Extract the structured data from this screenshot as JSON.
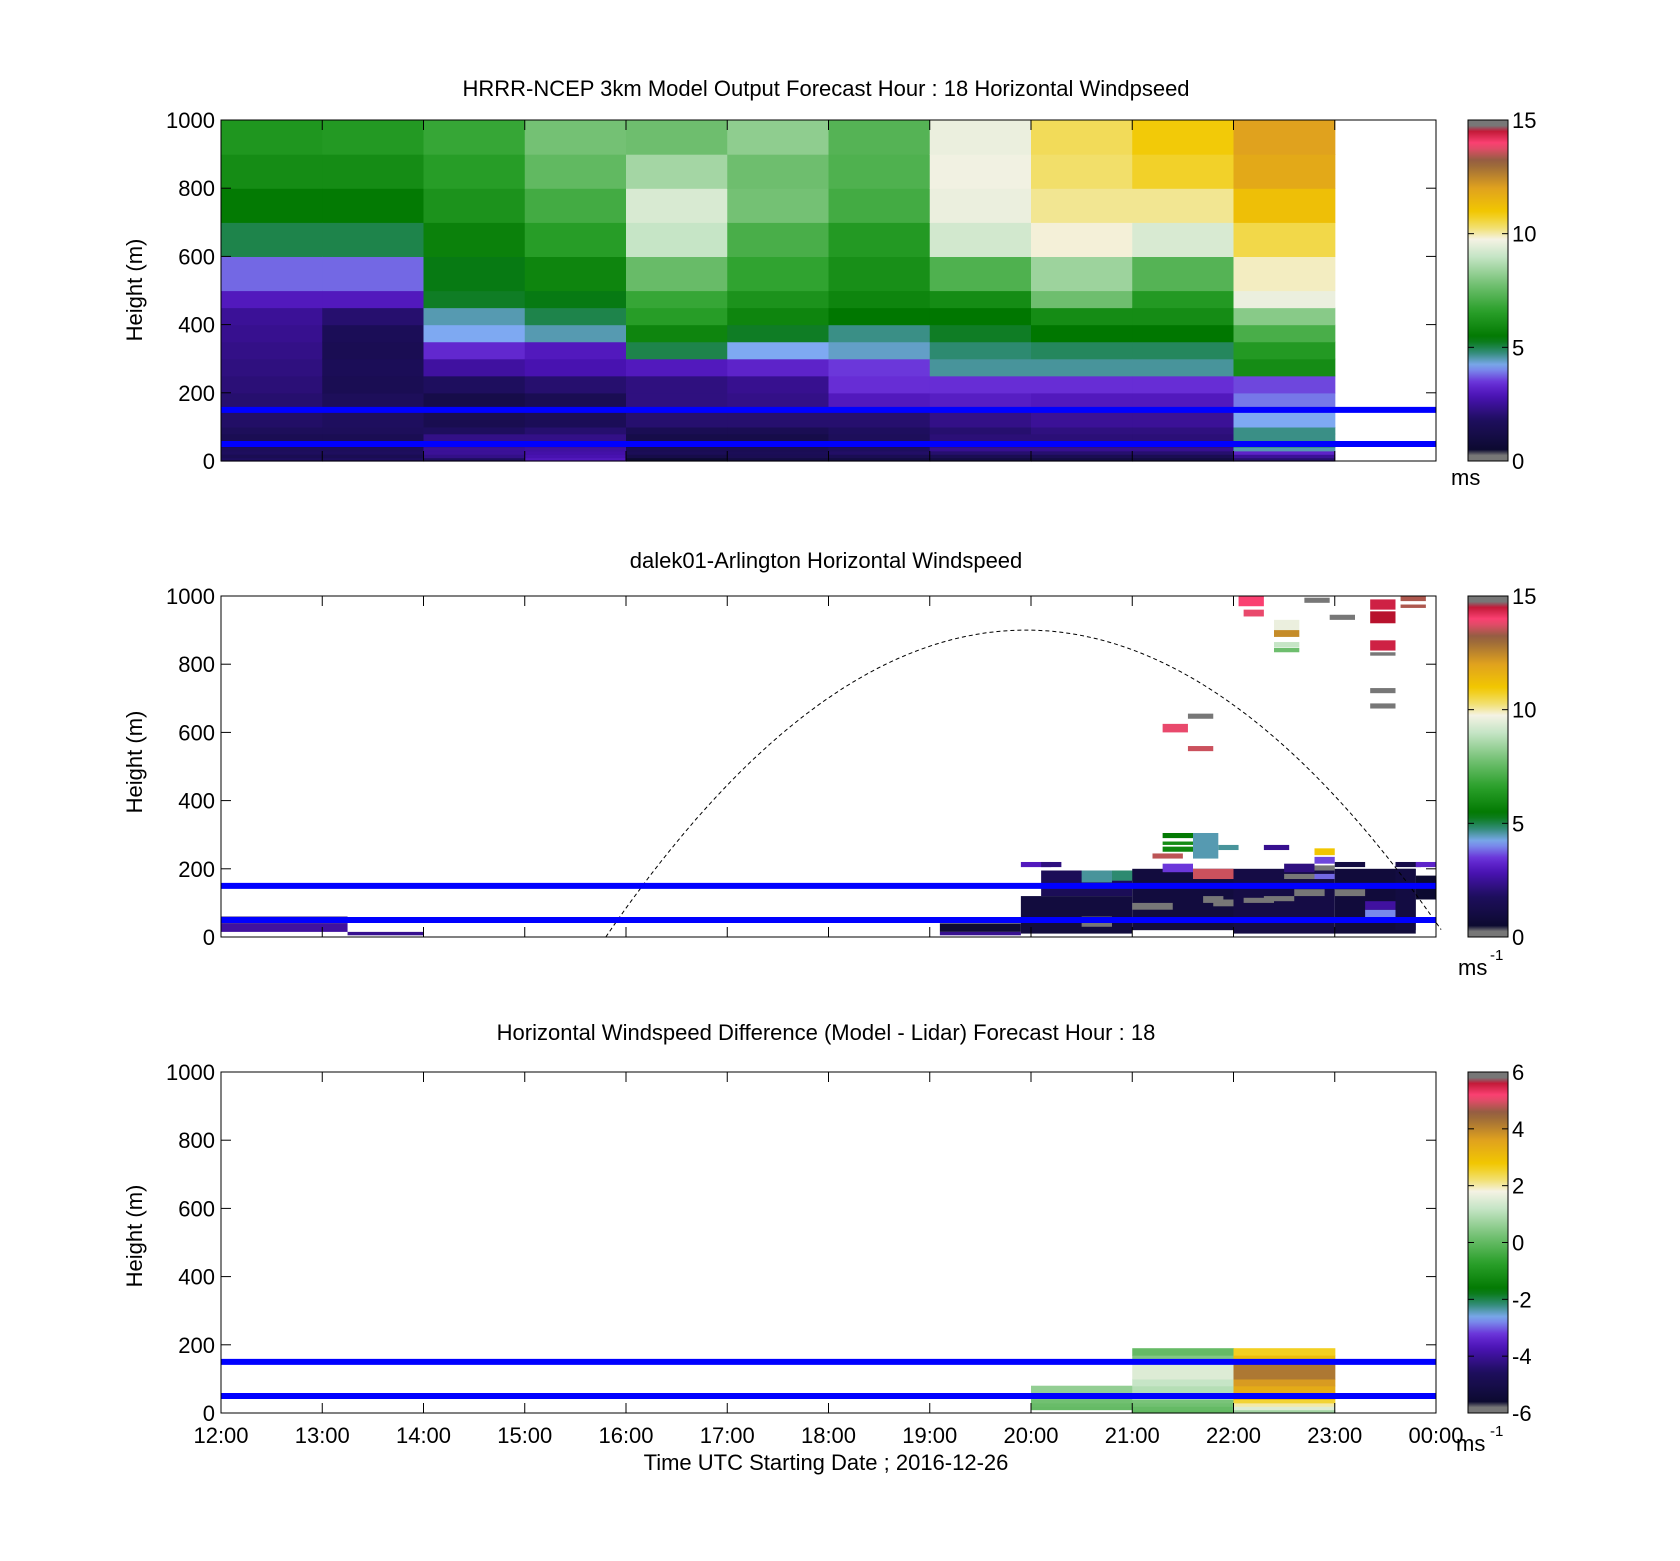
{
  "x_axis": {
    "label": "Time UTC  Starting Date ; 2016-12-26",
    "ticks": [
      "12:00",
      "13:00",
      "14:00",
      "15:00",
      "16:00",
      "17:00",
      "18:00",
      "19:00",
      "20:00",
      "21:00",
      "22:00",
      "23:00",
      "00:00"
    ],
    "range_hours": [
      12,
      24
    ]
  },
  "reference_lines_m": [
    150,
    50
  ],
  "reference_line_color": "#0000ff",
  "colormaps": {
    "speed": [
      [
        0.0,
        "#777777"
      ],
      [
        0.02,
        "#777777"
      ],
      [
        0.021,
        "#0a0a2a"
      ],
      [
        0.12,
        "#1e0e5e"
      ],
      [
        0.19,
        "#4a12b4"
      ],
      [
        0.23,
        "#6a2fd8"
      ],
      [
        0.28,
        "#7ea9f2"
      ],
      [
        0.32,
        "#2d8a70"
      ],
      [
        0.36,
        "#007700"
      ],
      [
        0.44,
        "#2aa02a"
      ],
      [
        0.52,
        "#74c174"
      ],
      [
        0.6,
        "#c6e5c6"
      ],
      [
        0.65,
        "#f4f2e4"
      ],
      [
        0.68,
        "#f2e27a"
      ],
      [
        0.73,
        "#f2c800"
      ],
      [
        0.8,
        "#e0a21e"
      ],
      [
        0.88,
        "#8f5f3f"
      ],
      [
        0.93,
        "#ff4477"
      ],
      [
        0.975,
        "#b5102a"
      ],
      [
        0.976,
        "#777777"
      ],
      [
        1.0,
        "#777777"
      ]
    ]
  },
  "panels": [
    {
      "title": "HRRR-NCEP 3km Model Output   Forecast Hour : 18 Horizontal Windpseed",
      "ylabel": "Height (m)",
      "yticks": [
        "0",
        "200",
        "400",
        "600",
        "800",
        "1000"
      ],
      "colorbar": {
        "min": 0,
        "max": 15,
        "ticks": [
          "0",
          "5",
          "10",
          "15"
        ],
        "unit": "ms",
        "unit_sup": ""
      },
      "show_xticklabels": false,
      "heatmap": {
        "start_hour": 12,
        "step_hour": 1,
        "bins": [
          [
            0,
            10
          ],
          [
            10,
            20
          ],
          [
            20,
            30
          ],
          [
            30,
            40
          ],
          [
            40,
            60
          ],
          [
            60,
            80
          ],
          [
            80,
            100
          ],
          [
            100,
            150
          ],
          [
            150,
            200
          ],
          [
            200,
            250
          ],
          [
            250,
            300
          ],
          [
            300,
            350
          ],
          [
            350,
            400
          ],
          [
            400,
            450
          ],
          [
            450,
            500
          ],
          [
            500,
            600
          ],
          [
            600,
            700
          ],
          [
            700,
            800
          ],
          [
            800,
            900
          ],
          [
            900,
            1000
          ]
        ],
        "columns": [
          [
            1.8,
            1.5,
            1.8,
            1.7,
            1.6,
            1.5,
            1.7,
            1.9,
            2.0,
            2.1,
            2.2,
            2.3,
            2.4,
            2.5,
            3.0,
            3.8,
            5.0,
            5.5,
            6.0,
            6.3
          ],
          [
            1.8,
            1.5,
            1.8,
            1.7,
            1.6,
            1.5,
            1.7,
            1.8,
            1.7,
            1.5,
            1.6,
            1.5,
            1.6,
            2.0,
            3.0,
            3.8,
            5.0,
            5.5,
            6.0,
            6.4
          ],
          [
            1.8,
            2.3,
            2.5,
            2.5,
            2.4,
            2.3,
            1.8,
            1.4,
            1.2,
            1.8,
            2.6,
            3.3,
            4.2,
            4.5,
            5.2,
            5.3,
            5.7,
            6.2,
            6.5,
            6.8
          ],
          [
            3.0,
            2.8,
            2.7,
            2.6,
            2.5,
            2.3,
            2.0,
            1.6,
            1.5,
            2.0,
            2.8,
            3.0,
            4.5,
            5.0,
            5.3,
            5.8,
            6.5,
            7.0,
            7.5,
            7.8
          ],
          [
            0.5,
            1.2,
            1.6,
            1.5,
            1.3,
            1.2,
            1.5,
            2.0,
            2.2,
            2.2,
            3.0,
            5.0,
            5.8,
            6.5,
            6.8,
            7.6,
            9.0,
            9.3,
            8.5,
            7.7
          ],
          [
            1.0,
            1.5,
            1.6,
            1.5,
            1.3,
            1.2,
            1.5,
            2.0,
            2.3,
            2.4,
            3.2,
            4.2,
            5.2,
            5.8,
            6.2,
            6.7,
            7.1,
            7.8,
            7.7,
            8.2
          ],
          [
            1.0,
            1.5,
            1.9,
            1.8,
            1.6,
            1.7,
            1.8,
            2.0,
            3.0,
            3.4,
            3.5,
            4.4,
            4.7,
            5.4,
            5.8,
            6.1,
            6.4,
            7.0,
            7.2,
            7.3
          ],
          [
            1.0,
            1.5,
            2.0,
            2.4,
            2.2,
            2.1,
            2.0,
            2.3,
            3.1,
            3.4,
            4.6,
            4.8,
            5.2,
            5.4,
            6.0,
            7.2,
            9.2,
            9.6,
            9.7,
            9.6
          ],
          [
            1.0,
            1.5,
            2.0,
            2.4,
            2.2,
            2.1,
            2.2,
            2.5,
            3.0,
            3.4,
            4.6,
            4.9,
            5.4,
            6.0,
            7.7,
            8.4,
            9.8,
            10.1,
            10.3,
            10.4
          ],
          [
            1.0,
            1.5,
            2.0,
            2.4,
            2.2,
            2.1,
            2.2,
            2.5,
            3.0,
            3.4,
            4.6,
            4.9,
            5.4,
            6.0,
            6.4,
            7.3,
            9.3,
            10.1,
            10.7,
            10.9
          ],
          [
            2.0,
            2.5,
            3.2,
            4.5,
            4.7,
            4.7,
            4.7,
            4.2,
            3.9,
            3.6,
            6.0,
            6.4,
            7.1,
            8.1,
            9.6,
            9.9,
            10.5,
            11.2,
            11.8,
            12.0
          ]
        ]
      },
      "scatter": [],
      "arc": null
    },
    {
      "title": "dalek01-Arlington  Horizontal Windspeed",
      "ylabel": "Height (m)",
      "yticks": [
        "0",
        "200",
        "400",
        "600",
        "800",
        "1000"
      ],
      "colorbar": {
        "min": 0,
        "max": 15,
        "ticks": [
          "0",
          "5",
          "10",
          "15"
        ],
        "unit": "ms",
        "unit_sup": "-1"
      },
      "show_xticklabels": false,
      "heatmap": null,
      "scatter": [
        {
          "t0": 12.0,
          "t1": 13.25,
          "h0": 40,
          "h1": 60,
          "v": 2.0
        },
        {
          "t0": 12.0,
          "t1": 13.25,
          "h0": 15,
          "h1": 40,
          "v": 2.6
        },
        {
          "t0": 13.25,
          "t1": 14.0,
          "h0": 5,
          "h1": 15,
          "v": 2.4
        },
        {
          "t0": 19.1,
          "t1": 19.9,
          "h0": 15,
          "h1": 40,
          "v": 0.6
        },
        {
          "t0": 19.1,
          "t1": 19.9,
          "h0": 5,
          "h1": 15,
          "v": 2.4
        },
        {
          "t0": 19.9,
          "t1": 21.0,
          "h0": 10,
          "h1": 120,
          "v": 0.9
        },
        {
          "t0": 19.9,
          "t1": 20.2,
          "h0": 205,
          "h1": 220,
          "v": 3.0
        },
        {
          "t0": 20.1,
          "t1": 20.3,
          "h0": 205,
          "h1": 220,
          "v": 2.2
        },
        {
          "t0": 20.1,
          "t1": 21.0,
          "h0": 120,
          "h1": 195,
          "v": 1.6
        },
        {
          "t0": 20.5,
          "t1": 20.8,
          "h0": 160,
          "h1": 195,
          "v": 4.6
        },
        {
          "t0": 20.8,
          "t1": 21.1,
          "h0": 165,
          "h1": 195,
          "v": 4.8
        },
        {
          "t0": 20.5,
          "t1": 20.8,
          "h0": 30,
          "h1": 60,
          "v": 0.2
        },
        {
          "t0": 21.0,
          "t1": 22.0,
          "h0": 20,
          "h1": 200,
          "v": 0.9
        },
        {
          "t0": 21.0,
          "t1": 21.4,
          "h0": 80,
          "h1": 100,
          "v": 0.2
        },
        {
          "t0": 21.2,
          "t1": 21.5,
          "h0": 230,
          "h1": 245,
          "v": 13.5
        },
        {
          "t0": 21.3,
          "t1": 21.6,
          "h0": 190,
          "h1": 215,
          "v": 3.5
        },
        {
          "t0": 21.3,
          "t1": 21.6,
          "h0": 250,
          "h1": 265,
          "v": 5.8
        },
        {
          "t0": 21.3,
          "t1": 21.6,
          "h0": 290,
          "h1": 305,
          "v": 5.5
        },
        {
          "t0": 21.3,
          "t1": 21.6,
          "h0": 270,
          "h1": 280,
          "v": 6.0
        },
        {
          "t0": 21.6,
          "t1": 21.85,
          "h0": 230,
          "h1": 305,
          "v": 4.5
        },
        {
          "t0": 21.85,
          "t1": 22.05,
          "h0": 255,
          "h1": 270,
          "v": 4.6
        },
        {
          "t0": 21.6,
          "t1": 22.0,
          "h0": 170,
          "h1": 200,
          "v": 13.6
        },
        {
          "t0": 21.8,
          "t1": 22.0,
          "h0": 90,
          "h1": 110,
          "v": 0.2
        },
        {
          "t0": 21.7,
          "t1": 21.9,
          "h0": 100,
          "h1": 120,
          "v": 0.2
        },
        {
          "t0": 22.0,
          "t1": 23.0,
          "h0": 10,
          "h1": 200,
          "v": 1.1
        },
        {
          "t0": 22.1,
          "t1": 22.4,
          "h0": 100,
          "h1": 115,
          "v": 0.2
        },
        {
          "t0": 22.3,
          "t1": 22.6,
          "h0": 105,
          "h1": 120,
          "v": 0.2
        },
        {
          "t0": 22.3,
          "t1": 22.55,
          "h0": 255,
          "h1": 270,
          "v": 2.4
        },
        {
          "t0": 22.5,
          "t1": 22.8,
          "h0": 190,
          "h1": 215,
          "v": 2.2
        },
        {
          "t0": 22.5,
          "t1": 22.8,
          "h0": 170,
          "h1": 185,
          "v": 0.2
        },
        {
          "t0": 22.6,
          "t1": 22.9,
          "h0": 120,
          "h1": 140,
          "v": 0.2
        },
        {
          "t0": 22.8,
          "t1": 23.0,
          "h0": 240,
          "h1": 260,
          "v": 11.0
        },
        {
          "t0": 22.8,
          "t1": 23.0,
          "h0": 215,
          "h1": 235,
          "v": 3.6
        },
        {
          "t0": 22.8,
          "t1": 23.0,
          "h0": 195,
          "h1": 210,
          "v": 0.2
        },
        {
          "t0": 22.8,
          "t1": 23.0,
          "h0": 170,
          "h1": 185,
          "v": 3.8
        },
        {
          "t0": 23.0,
          "t1": 23.8,
          "h0": 10,
          "h1": 200,
          "v": 0.8
        },
        {
          "t0": 23.0,
          "t1": 23.3,
          "h0": 205,
          "h1": 220,
          "v": 1.0
        },
        {
          "t0": 23.0,
          "t1": 23.3,
          "h0": 120,
          "h1": 140,
          "v": 0.2
        },
        {
          "t0": 23.3,
          "t1": 23.6,
          "h0": 55,
          "h1": 80,
          "v": 4.0
        },
        {
          "t0": 23.3,
          "t1": 23.6,
          "h0": 80,
          "h1": 105,
          "v": 2.6
        },
        {
          "t0": 23.6,
          "t1": 23.85,
          "h0": 205,
          "h1": 220,
          "v": 1.2
        },
        {
          "t0": 23.6,
          "t1": 23.8,
          "h0": 20,
          "h1": 200,
          "v": 1.0
        },
        {
          "t0": 23.8,
          "t1": 24.0,
          "h0": 205,
          "h1": 220,
          "v": 3.2
        },
        {
          "t0": 23.8,
          "t1": 24.0,
          "h0": 110,
          "h1": 180,
          "v": 0.5
        },
        {
          "t0": 22.05,
          "t1": 22.3,
          "h0": 970,
          "h1": 1000,
          "v": 14.0
        },
        {
          "t0": 22.1,
          "t1": 22.3,
          "h0": 940,
          "h1": 960,
          "v": 13.8
        },
        {
          "t0": 22.4,
          "t1": 22.65,
          "h0": 900,
          "h1": 930,
          "v": 9.6
        },
        {
          "t0": 22.4,
          "t1": 22.65,
          "h0": 880,
          "h1": 900,
          "v": 12.4
        },
        {
          "t0": 22.4,
          "t1": 22.65,
          "h0": 850,
          "h1": 865,
          "v": 9.0
        },
        {
          "t0": 22.4,
          "t1": 22.65,
          "h0": 835,
          "h1": 848,
          "v": 7.7
        },
        {
          "t0": 22.7,
          "t1": 22.95,
          "h0": 980,
          "h1": 995,
          "v": 0.2
        },
        {
          "t0": 22.95,
          "t1": 23.2,
          "h0": 930,
          "h1": 945,
          "v": 0.2
        },
        {
          "t0": 23.35,
          "t1": 23.6,
          "h0": 960,
          "h1": 990,
          "v": 14.4
        },
        {
          "t0": 23.35,
          "t1": 23.6,
          "h0": 920,
          "h1": 955,
          "v": 14.6
        },
        {
          "t0": 23.35,
          "t1": 23.6,
          "h0": 840,
          "h1": 870,
          "v": 14.4
        },
        {
          "t0": 23.35,
          "t1": 23.6,
          "h0": 825,
          "h1": 835,
          "v": 0.2
        },
        {
          "t0": 23.65,
          "t1": 23.9,
          "h0": 985,
          "h1": 1000,
          "v": 13.4
        },
        {
          "t0": 23.65,
          "t1": 23.9,
          "h0": 965,
          "h1": 975,
          "v": 13.4
        },
        {
          "t0": 23.35,
          "t1": 23.6,
          "h0": 715,
          "h1": 730,
          "v": 0.2
        },
        {
          "t0": 23.35,
          "t1": 23.6,
          "h0": 670,
          "h1": 685,
          "v": 0.2
        },
        {
          "t0": 21.3,
          "t1": 21.55,
          "h0": 600,
          "h1": 625,
          "v": 13.8
        },
        {
          "t0": 21.55,
          "t1": 21.8,
          "h0": 640,
          "h1": 655,
          "v": 0.2
        },
        {
          "t0": 21.55,
          "t1": 21.8,
          "h0": 545,
          "h1": 560,
          "v": 13.6
        }
      ],
      "arc": {
        "t_start": 15.8,
        "t_end": 24.05,
        "peak_hour": 19.95,
        "peak_m": 900,
        "color": "#000000"
      }
    },
    {
      "title": "Horizontal Windspeed Difference (Model - Lidar) Forecast Hour : 18",
      "ylabel": "Height (m)",
      "yticks": [
        "0",
        "200",
        "400",
        "600",
        "800",
        "1000"
      ],
      "colorbar": {
        "min": -6,
        "max": 6,
        "ticks": [
          "-6",
          "-4",
          "-2",
          "0",
          "2",
          "4",
          "6"
        ],
        "unit": "ms",
        "unit_sup": "-1"
      },
      "show_xticklabels": true,
      "heatmap": {
        "start_hour": 20,
        "step_hour": 1,
        "bins": [
          [
            0,
            10
          ],
          [
            10,
            20
          ],
          [
            20,
            30
          ],
          [
            30,
            40
          ],
          [
            40,
            60
          ],
          [
            60,
            80
          ],
          [
            80,
            100
          ],
          [
            100,
            150
          ],
          [
            150,
            170
          ],
          [
            170,
            190
          ]
        ],
        "columns": [
          [
            null,
            0.05,
            0.1,
            0.2,
            0.3,
            0.6,
            null,
            null,
            null,
            null
          ],
          [
            0.0,
            0.05,
            0.2,
            0.3,
            0.8,
            1.0,
            1.2,
            1.5,
            0.4,
            0.05
          ],
          [
            0.8,
            1.5,
            2.0,
            2.5,
            3.0,
            3.4,
            3.7,
            4.2,
            3.0,
            2.6
          ]
        ]
      },
      "scatter": [],
      "arc": null
    }
  ]
}
